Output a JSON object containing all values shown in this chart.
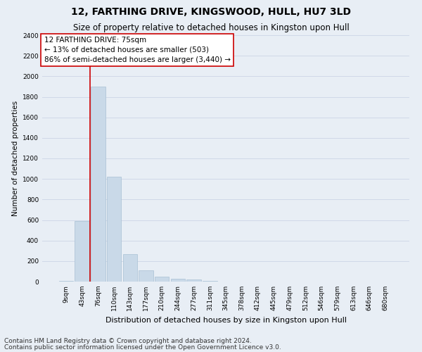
{
  "title": "12, FARTHING DRIVE, KINGSWOOD, HULL, HU7 3LD",
  "subtitle": "Size of property relative to detached houses in Kingston upon Hull",
  "xlabel": "Distribution of detached houses by size in Kingston upon Hull",
  "ylabel": "Number of detached properties",
  "categories": [
    "9sqm",
    "43sqm",
    "76sqm",
    "110sqm",
    "143sqm",
    "177sqm",
    "210sqm",
    "244sqm",
    "277sqm",
    "311sqm",
    "345sqm",
    "378sqm",
    "412sqm",
    "445sqm",
    "479sqm",
    "512sqm",
    "546sqm",
    "579sqm",
    "613sqm",
    "646sqm",
    "680sqm"
  ],
  "values": [
    10,
    590,
    1900,
    1025,
    270,
    110,
    45,
    30,
    18,
    5,
    0,
    0,
    0,
    0,
    0,
    0,
    0,
    0,
    0,
    0,
    0
  ],
  "bar_color": "#c9d9e8",
  "bar_edge_color": "#a8c0d4",
  "vline_color": "#cc0000",
  "annotation_text": "12 FARTHING DRIVE: 75sqm\n← 13% of detached houses are smaller (503)\n86% of semi-detached houses are larger (3,440) →",
  "annotation_box_color": "#ffffff",
  "annotation_box_edge": "#cc0000",
  "ylim": [
    0,
    2400
  ],
  "yticks": [
    0,
    200,
    400,
    600,
    800,
    1000,
    1200,
    1400,
    1600,
    1800,
    2000,
    2200,
    2400
  ],
  "grid_color": "#d0d8e8",
  "bg_color": "#e8eef5",
  "footer1": "Contains HM Land Registry data © Crown copyright and database right 2024.",
  "footer2": "Contains public sector information licensed under the Open Government Licence v3.0.",
  "title_fontsize": 10,
  "subtitle_fontsize": 8.5,
  "xlabel_fontsize": 8,
  "ylabel_fontsize": 7.5,
  "tick_fontsize": 6.5,
  "annotation_fontsize": 7.5,
  "footer_fontsize": 6.5
}
